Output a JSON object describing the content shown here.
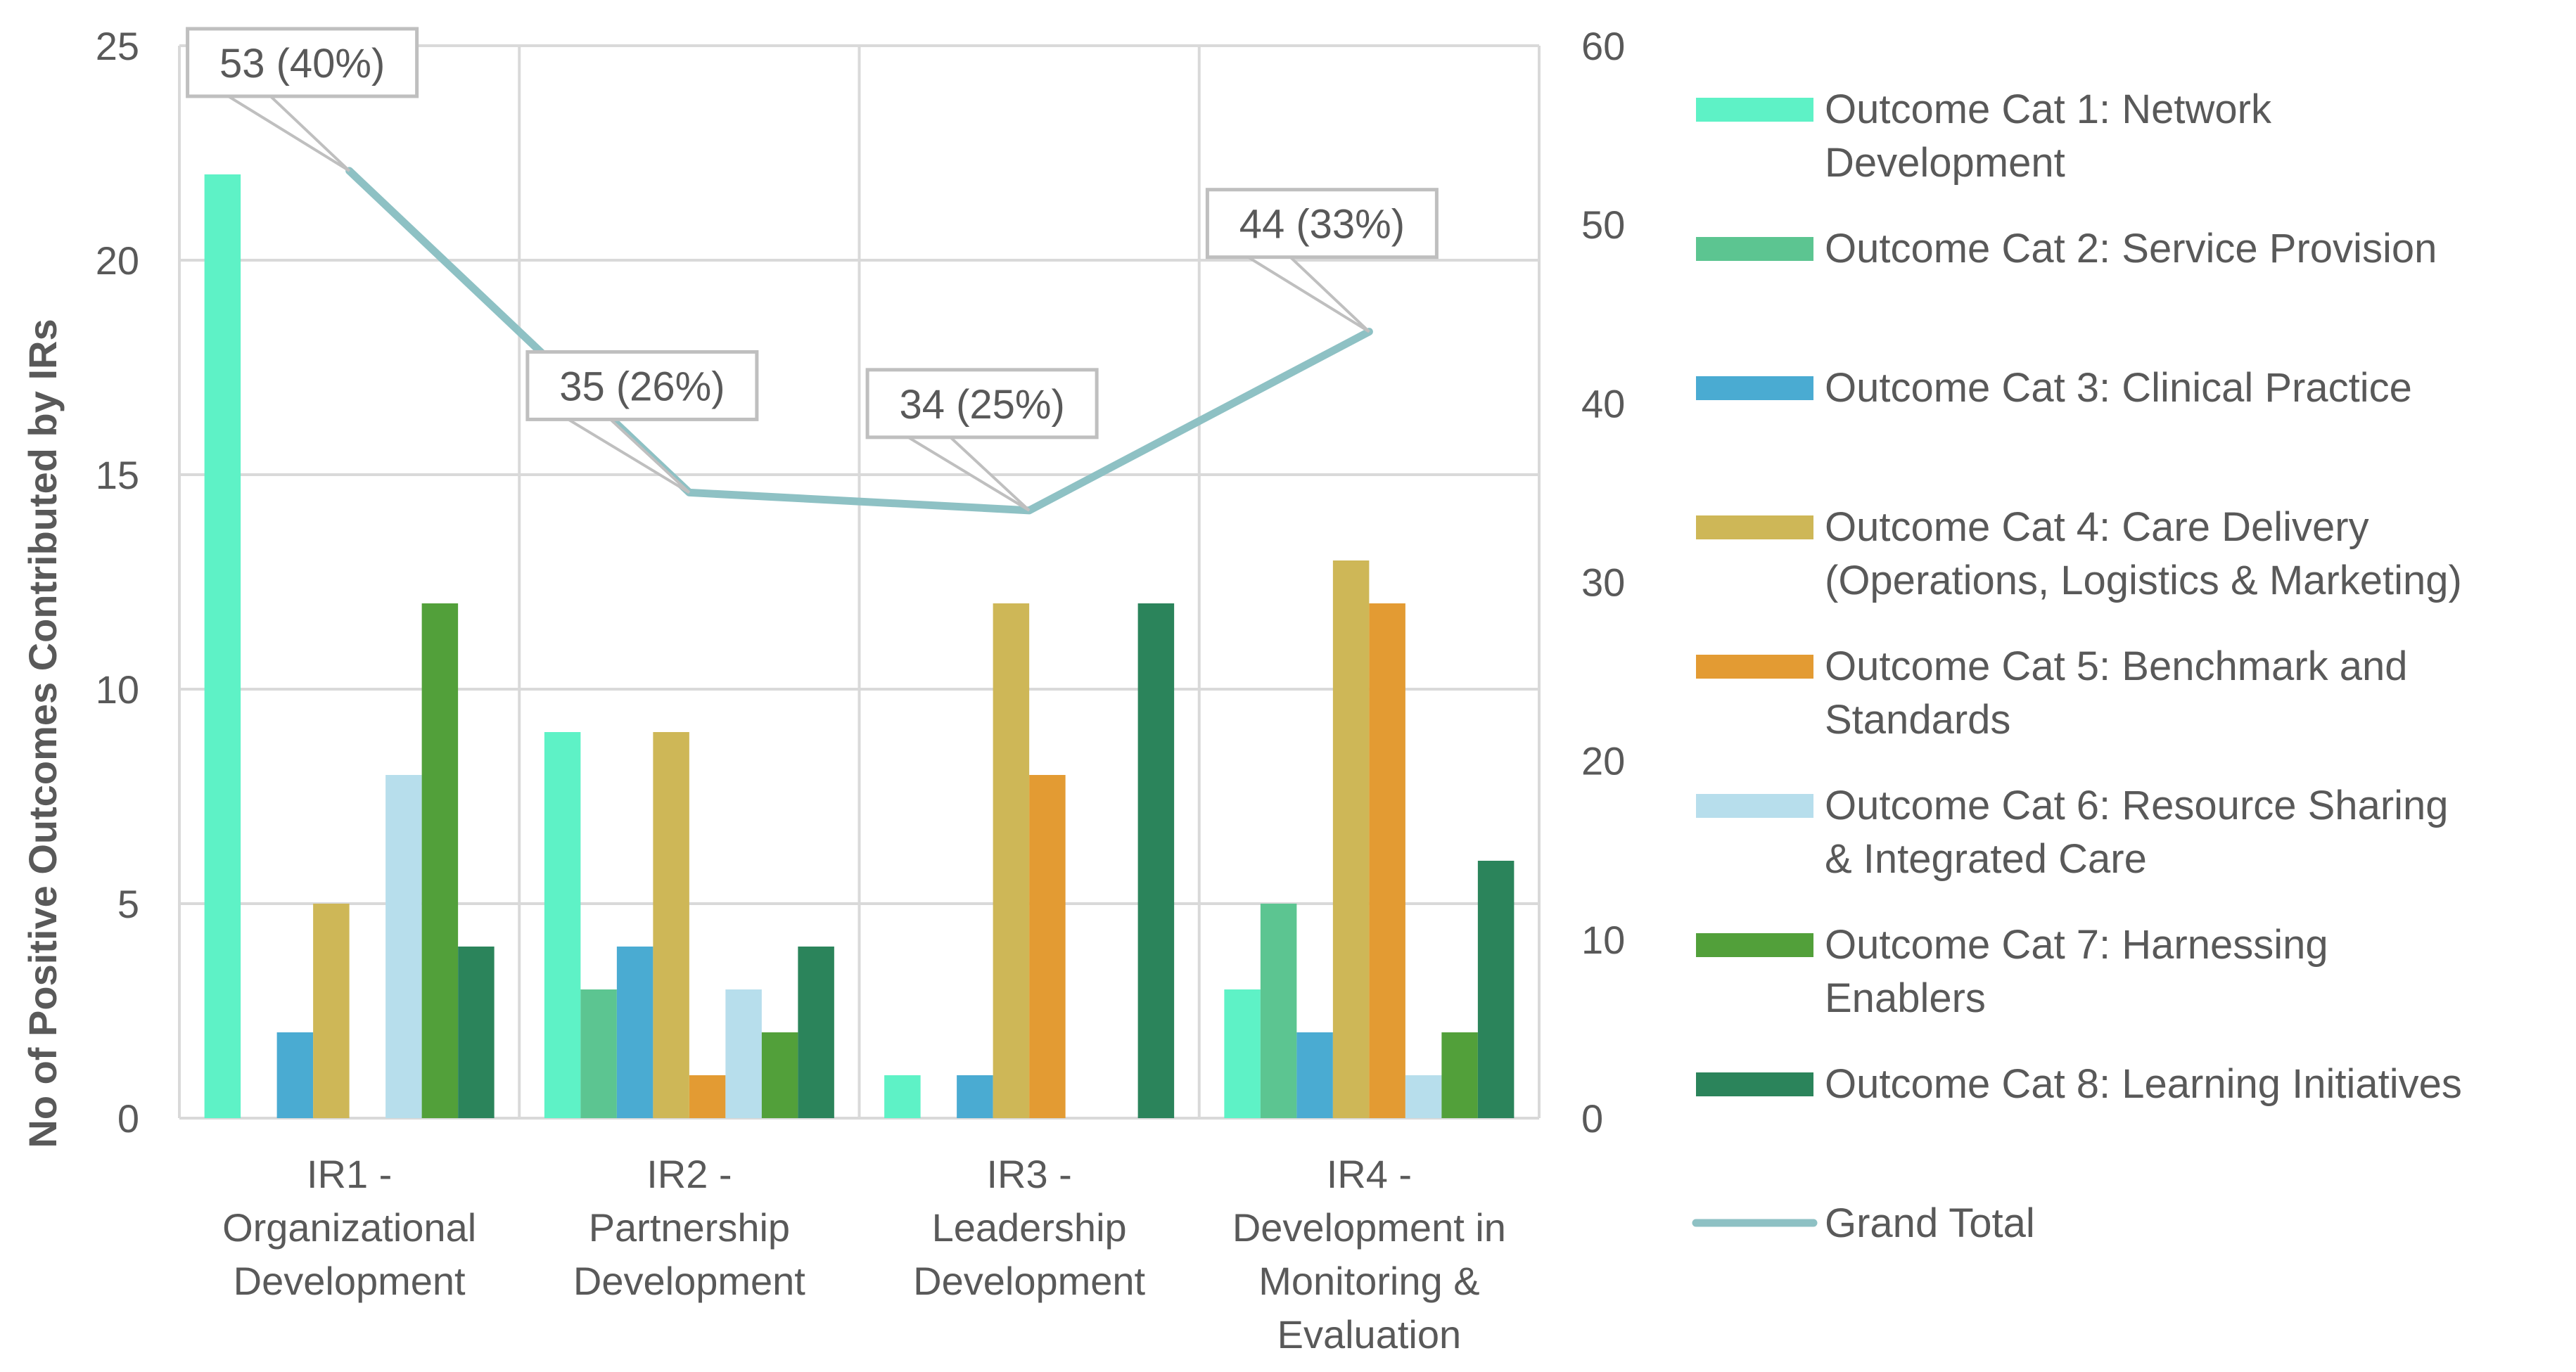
{
  "chart_data": {
    "type": "bar",
    "title": "",
    "ylabel": "No of Positive Outcomes Contributed by IRs",
    "xlabel": "",
    "ylim": [
      0,
      25
    ],
    "y_ticks": [
      0,
      5,
      10,
      15,
      20,
      25
    ],
    "y2lim": [
      0,
      60
    ],
    "y2_ticks": [
      0,
      10,
      20,
      30,
      40,
      50,
      60
    ],
    "grid": true,
    "legend_position": "right",
    "categories": [
      [
        "IR1 -",
        "Organizational",
        "Development"
      ],
      [
        "IR2 -",
        "Partnership",
        "Development"
      ],
      [
        "IR3 -",
        "Leadership",
        "Development"
      ],
      [
        "IR4 -",
        "Development in",
        "Monitoring &",
        "Evaluation"
      ]
    ],
    "series": [
      {
        "name": "Outcome Cat 1: Network Development",
        "legend_lines": [
          "Outcome Cat 1: Network",
          "Development"
        ],
        "color": "#5EF2C6",
        "values": [
          22,
          9,
          1,
          3
        ]
      },
      {
        "name": "Outcome Cat 2: Service Provision",
        "legend_lines": [
          "Outcome Cat 2: Service Provision"
        ],
        "color": "#5CC591",
        "values": [
          0,
          3,
          0,
          5
        ]
      },
      {
        "name": "Outcome Cat 3: Clinical Practice",
        "legend_lines": [
          "Outcome Cat 3: Clinical Practice"
        ],
        "color": "#4AABD2",
        "values": [
          2,
          4,
          1,
          2
        ]
      },
      {
        "name": "Outcome Cat 4: Care Delivery (Operations, Logistics & Marketing)",
        "legend_lines": [
          "Outcome Cat 4: Care Delivery",
          "(Operations, Logistics & Marketing)"
        ],
        "color": "#CEB757",
        "values": [
          5,
          9,
          12,
          13
        ]
      },
      {
        "name": "Outcome Cat 5: Benchmark and Standards",
        "legend_lines": [
          "Outcome Cat 5: Benchmark and",
          "Standards"
        ],
        "color": "#E39B33",
        "values": [
          0,
          1,
          8,
          12
        ]
      },
      {
        "name": "Outcome Cat 6: Resource Sharing & Integrated Care",
        "legend_lines": [
          "Outcome Cat 6: Resource Sharing",
          "& Integrated Care"
        ],
        "color": "#B7DEEC",
        "values": [
          8,
          3,
          0,
          1
        ]
      },
      {
        "name": "Outcome Cat 7: Harnessing Enablers",
        "legend_lines": [
          "Outcome Cat 7: Harnessing",
          "Enablers"
        ],
        "color": "#52A03A",
        "values": [
          12,
          2,
          0,
          2
        ]
      },
      {
        "name": "Outcome Cat 8: Learning Initiatives",
        "legend_lines": [
          "Outcome Cat 8: Learning Initiatives"
        ],
        "color": "#2B845B",
        "values": [
          4,
          4,
          12,
          6
        ]
      }
    ],
    "line_series": {
      "name": "Grand Total",
      "legend_lines": [
        "Grand Total"
      ],
      "color": "#8EC1C4",
      "axis": "secondary",
      "values": [
        53,
        35,
        34,
        44
      ],
      "labels": [
        "53 (40%)",
        "35 (26%)",
        "34 (25%)",
        "44 (33%)"
      ]
    }
  }
}
